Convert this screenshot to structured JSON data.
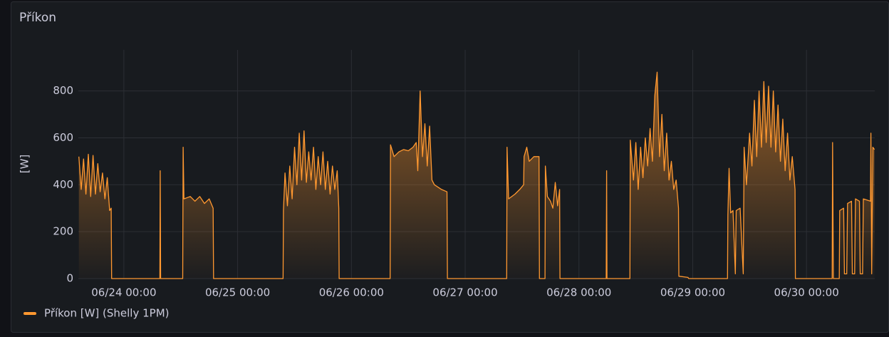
{
  "chart_data": {
    "type": "line",
    "title": "Příkon",
    "ylabel": "[W]",
    "ylim": [
      0,
      975
    ],
    "yticks": [
      0,
      200,
      400,
      600,
      800
    ],
    "xlim": [
      "06/23 14:24",
      "06/30 14:24"
    ],
    "xticks": [
      "06/24 00:00",
      "06/25 00:00",
      "06/26 00:00",
      "06/27 00:00",
      "06/28 00:00",
      "06/29 00:00",
      "06/30 00:00"
    ],
    "grid": true,
    "legend": "bottom-left",
    "x": [
      "06/23 14:30",
      "06/23 15:00",
      "06/23 15:30",
      "06/23 16:00",
      "06/23 16:30",
      "06/23 17:00",
      "06/23 17:30",
      "06/23 18:00",
      "06/23 18:30",
      "06/23 19:00",
      "06/23 19:30",
      "06/23 20:00",
      "06/23 20:30",
      "06/23 21:00",
      "06/23 21:20",
      "06/23 21:25",
      "06/24 07:35",
      "06/24 07:40",
      "06/24 07:45",
      "06/24 12:25",
      "06/24 12:30",
      "06/24 12:40",
      "06/24 14:00",
      "06/24 15:00",
      "06/24 16:00",
      "06/24 17:00",
      "06/24 18:00",
      "06/24 18:50",
      "06/24 18:55",
      "06/25 09:35",
      "06/25 09:40",
      "06/25 10:00",
      "06/25 10:30",
      "06/25 11:00",
      "06/25 11:30",
      "06/25 12:00",
      "06/25 12:30",
      "06/25 13:00",
      "06/25 13:30",
      "06/25 14:00",
      "06/25 14:30",
      "06/25 15:00",
      "06/25 15:30",
      "06/25 16:00",
      "06/25 16:30",
      "06/25 17:00",
      "06/25 17:30",
      "06/25 18:00",
      "06/25 18:30",
      "06/25 19:00",
      "06/25 19:30",
      "06/25 20:00",
      "06/25 20:30",
      "06/25 21:00",
      "06/25 21:20",
      "06/25 21:25",
      "06/26 08:10",
      "06/26 08:15",
      "06/26 09:00",
      "06/26 10:00",
      "06/26 11:00",
      "06/26 12:00",
      "06/26 13:00",
      "06/26 13:40",
      "06/26 14:00",
      "06/26 14:30",
      "06/26 15:00",
      "06/26 15:30",
      "06/26 16:00",
      "06/26 16:30",
      "06/26 17:00",
      "06/26 17:30",
      "06/26 19:00",
      "06/26 20:10",
      "06/26 20:15",
      "06/27 08:45",
      "06/27 08:50",
      "06/27 09:10",
      "06/27 10:30",
      "06/27 11:30",
      "06/27 12:20",
      "06/27 12:25",
      "06/27 13:00",
      "06/27 13:30",
      "06/27 14:30",
      "06/27 15:35",
      "06/27 15:40",
      "06/27 16:50",
      "06/27 16:55",
      "06/27 17:20",
      "06/27 18:00",
      "06/27 18:30",
      "06/27 19:00",
      "06/27 19:30",
      "06/27 19:55",
      "06/27 20:00",
      "06/28 05:45",
      "06/28 05:50",
      "06/28 05:55",
      "06/28 10:45",
      "06/28 10:50",
      "06/28 11:30",
      "06/28 12:00",
      "06/28 12:30",
      "06/28 13:00",
      "06/28 13:30",
      "06/28 14:00",
      "06/28 14:30",
      "06/28 15:00",
      "06/28 15:30",
      "06/28 16:00",
      "06/28 16:30",
      "06/28 17:00",
      "06/28 17:30",
      "06/28 18:00",
      "06/28 18:30",
      "06/28 19:00",
      "06/28 19:30",
      "06/28 20:00",
      "06/28 20:30",
      "06/28 21:00",
      "06/28 21:05",
      "06/28 23:00",
      "06/28 23:10",
      "06/29 07:20",
      "06/29 07:25",
      "06/29 07:40",
      "06/29 08:00",
      "06/29 08:30",
      "06/29 09:00",
      "06/29 09:10",
      "06/29 10:00",
      "06/29 10:40",
      "06/29 10:50",
      "06/29 11:20",
      "06/29 12:00",
      "06/29 12:30",
      "06/29 13:00",
      "06/29 13:30",
      "06/29 14:00",
      "06/29 14:30",
      "06/29 15:00",
      "06/29 15:30",
      "06/29 16:00",
      "06/29 16:30",
      "06/29 17:00",
      "06/29 17:30",
      "06/29 18:00",
      "06/29 18:30",
      "06/29 19:00",
      "06/29 19:30",
      "06/29 20:00",
      "06/29 20:30",
      "06/29 21:00",
      "06/29 21:35",
      "06/29 21:40",
      "06/30 05:25",
      "06/30 05:30",
      "06/30 05:40",
      "06/30 06:55",
      "06/30 07:00",
      "06/30 07:50",
      "06/30 08:00",
      "06/30 08:30",
      "06/30 08:40",
      "06/30 09:30",
      "06/30 09:40",
      "06/30 10:10",
      "06/30 10:20",
      "06/30 11:10",
      "06/30 11:20",
      "06/30 11:50",
      "06/30 12:00",
      "06/30 13:30",
      "06/30 13:35",
      "06/30 13:45",
      "06/30 14:00",
      "06/30 14:20"
    ],
    "series": [
      {
        "name": "Příkon [W] (Shelly 1PM)",
        "color": "#ff9830",
        "values": [
          520,
          380,
          510,
          360,
          530,
          350,
          525,
          360,
          490,
          370,
          450,
          340,
          430,
          290,
          300,
          0,
          0,
          460,
          0,
          0,
          560,
          340,
          350,
          330,
          350,
          320,
          340,
          300,
          0,
          0,
          290,
          450,
          310,
          480,
          340,
          560,
          400,
          620,
          420,
          630,
          410,
          540,
          420,
          560,
          380,
          520,
          400,
          540,
          380,
          500,
          360,
          480,
          380,
          460,
          300,
          0,
          0,
          570,
          520,
          540,
          550,
          545,
          560,
          580,
          460,
          800,
          520,
          660,
          480,
          650,
          420,
          400,
          380,
          370,
          0,
          0,
          560,
          340,
          360,
          380,
          400,
          520,
          560,
          500,
          520,
          520,
          0,
          0,
          480,
          350,
          330,
          300,
          410,
          310,
          380,
          0,
          0,
          460,
          0,
          0,
          590,
          420,
          580,
          380,
          560,
          430,
          600,
          480,
          640,
          500,
          780,
          880,
          520,
          700,
          460,
          620,
          420,
          500,
          380,
          420,
          300,
          10,
          5,
          0,
          0,
          270,
          470,
          280,
          290,
          20,
          290,
          300,
          20,
          560,
          400,
          620,
          480,
          760,
          520,
          800,
          560,
          840,
          580,
          820,
          560,
          800,
          540,
          740,
          500,
          680,
          460,
          620,
          420,
          520,
          380,
          0,
          0,
          580,
          0,
          0,
          290,
          300,
          20,
          20,
          320,
          330,
          20,
          20,
          340,
          330,
          20,
          20,
          340,
          330,
          620,
          20,
          560,
          550
        ]
      }
    ]
  }
}
